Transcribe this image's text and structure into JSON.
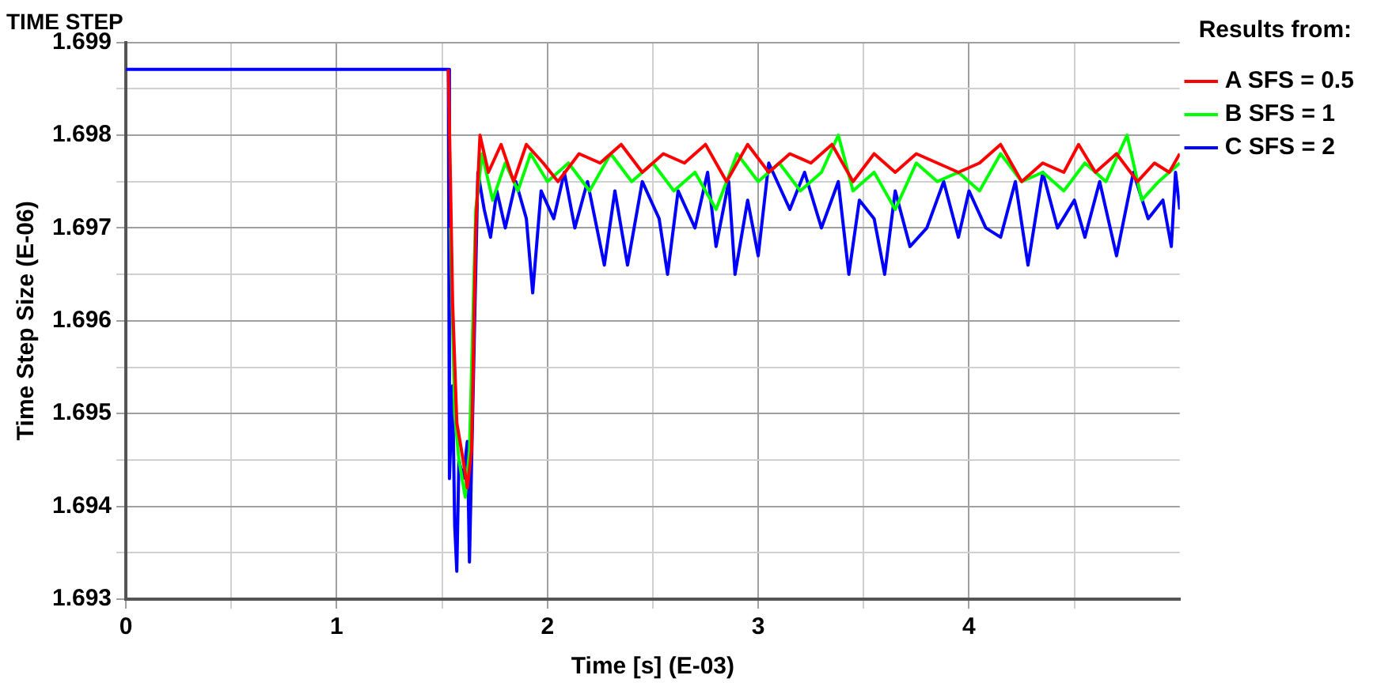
{
  "chart_data": {
    "type": "line",
    "title": "TIME STEP",
    "xlabel": "Time [s] (E-03)",
    "ylabel": "Time Step Size (E-06)",
    "legend_title": "Results from:",
    "legend": "top right",
    "grid": true,
    "marker": "none",
    "line_style": "solid",
    "xlim": [
      0,
      5
    ],
    "xticks": [
      0,
      {
        "value": 0.5,
        "label": null
      },
      1,
      {
        "value": 1.5,
        "label": null
      },
      2,
      {
        "value": 2.5,
        "label": null
      },
      3,
      {
        "value": 3.5,
        "label": null
      },
      4,
      {
        "value": 4.5,
        "label": null
      }
    ],
    "ylim": [
      1.693,
      1.699
    ],
    "yticks": [
      1.693,
      {
        "value": 1.6935,
        "label": null
      },
      1.694,
      {
        "value": 1.6945,
        "label": null
      },
      1.695,
      {
        "value": 1.6955,
        "label": null
      },
      1.696,
      {
        "value": 1.6965,
        "label": null
      },
      1.697,
      {
        "value": 1.6975,
        "label": null
      },
      1.698,
      {
        "value": 1.6985,
        "label": null
      },
      1.699
    ],
    "series": [
      {
        "name": "A SFS = 0.5",
        "color": "#ff0000",
        "x": [
          1.53,
          1.54,
          1.55,
          1.57,
          1.6,
          1.62,
          1.64,
          1.66,
          1.68,
          1.72,
          1.78,
          1.84,
          1.9,
          1.98,
          2.05,
          2.15,
          2.25,
          2.35,
          2.45,
          2.55,
          2.65,
          2.75,
          2.85,
          2.95,
          3.05,
          3.15,
          3.25,
          3.35,
          3.45,
          3.55,
          3.65,
          3.75,
          3.85,
          3.95,
          4.05,
          4.15,
          4.25,
          4.35,
          4.45,
          4.52,
          4.6,
          4.7,
          4.8,
          4.88,
          4.95,
          5.0
        ],
        "values": [
          1.69871,
          1.6975,
          1.6962,
          1.6949,
          1.6945,
          1.6942,
          1.6946,
          1.697,
          1.698,
          1.6976,
          1.6979,
          1.6975,
          1.6979,
          1.6977,
          1.6975,
          1.6978,
          1.6977,
          1.6979,
          1.6976,
          1.6978,
          1.6977,
          1.6979,
          1.6975,
          1.6979,
          1.6976,
          1.6978,
          1.6977,
          1.6979,
          1.6975,
          1.6978,
          1.6976,
          1.6978,
          1.6977,
          1.6976,
          1.6977,
          1.6979,
          1.6975,
          1.6977,
          1.6976,
          1.6979,
          1.6976,
          1.6978,
          1.6975,
          1.6977,
          1.6976,
          1.6978
        ]
      },
      {
        "name": "B SFS = 1",
        "color": "#00ff00",
        "x": [
          1.54,
          1.56,
          1.58,
          1.61,
          1.63,
          1.66,
          1.69,
          1.74,
          1.8,
          1.86,
          1.92,
          2.0,
          2.1,
          2.2,
          2.3,
          2.4,
          2.5,
          2.6,
          2.7,
          2.8,
          2.9,
          3.0,
          3.1,
          3.2,
          3.3,
          3.38,
          3.45,
          3.55,
          3.65,
          3.75,
          3.85,
          3.95,
          4.05,
          4.15,
          4.25,
          4.35,
          4.45,
          4.55,
          4.65,
          4.75,
          4.82,
          4.9,
          5.0
        ],
        "values": [
          1.697,
          1.695,
          1.6945,
          1.6941,
          1.6946,
          1.6972,
          1.6978,
          1.6973,
          1.6977,
          1.6974,
          1.6978,
          1.6975,
          1.6977,
          1.6974,
          1.6978,
          1.6975,
          1.6977,
          1.6974,
          1.6976,
          1.6972,
          1.6978,
          1.6975,
          1.6977,
          1.6974,
          1.6976,
          1.698,
          1.6974,
          1.6976,
          1.6972,
          1.6977,
          1.6975,
          1.6976,
          1.6974,
          1.6978,
          1.6975,
          1.6976,
          1.6974,
          1.6977,
          1.6975,
          1.698,
          1.6973,
          1.6975,
          1.6977
        ]
      },
      {
        "name": "C SFS = 2",
        "color": "#0000ff",
        "x": [
          0,
          1.53,
          1.535,
          1.55,
          1.56,
          1.57,
          1.58,
          1.6,
          1.62,
          1.63,
          1.65,
          1.67,
          1.7,
          1.73,
          1.76,
          1.8,
          1.85,
          1.9,
          1.93,
          1.97,
          2.03,
          2.08,
          2.13,
          2.19,
          2.27,
          2.32,
          2.38,
          2.45,
          2.53,
          2.57,
          2.62,
          2.7,
          2.76,
          2.8,
          2.86,
          2.89,
          2.95,
          3.0,
          3.05,
          3.15,
          3.22,
          3.3,
          3.38,
          3.43,
          3.48,
          3.55,
          3.6,
          3.65,
          3.72,
          3.8,
          3.88,
          3.95,
          4.0,
          4.08,
          4.15,
          4.22,
          4.28,
          4.35,
          4.42,
          4.5,
          4.55,
          4.62,
          4.7,
          4.78,
          4.85,
          4.92,
          4.96,
          4.98,
          5.0
        ],
        "values": [
          1.69871,
          1.69871,
          1.6943,
          1.6953,
          1.6938,
          1.6933,
          1.6945,
          1.6943,
          1.6947,
          1.6934,
          1.6955,
          1.6976,
          1.6972,
          1.6969,
          1.6974,
          1.697,
          1.6975,
          1.6971,
          1.6963,
          1.6974,
          1.6971,
          1.6976,
          1.697,
          1.6975,
          1.6966,
          1.6974,
          1.6966,
          1.6975,
          1.6971,
          1.6965,
          1.6974,
          1.697,
          1.6976,
          1.6968,
          1.6975,
          1.6965,
          1.6973,
          1.6967,
          1.6977,
          1.6972,
          1.6976,
          1.697,
          1.6975,
          1.6965,
          1.6973,
          1.6971,
          1.6965,
          1.6974,
          1.6968,
          1.697,
          1.6975,
          1.6969,
          1.6974,
          1.697,
          1.6969,
          1.6975,
          1.6966,
          1.6976,
          1.697,
          1.6973,
          1.6969,
          1.6975,
          1.6967,
          1.6976,
          1.6971,
          1.6973,
          1.6968,
          1.6976,
          1.6972
        ]
      }
    ]
  }
}
